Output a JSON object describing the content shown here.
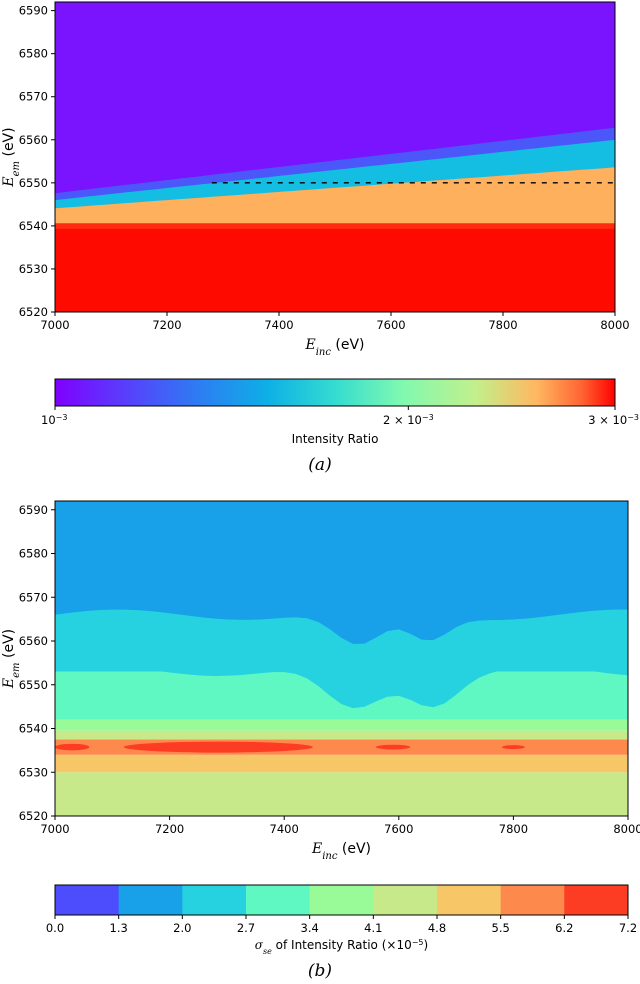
{
  "chart_data": [
    {
      "panel": "(a)",
      "type": "heatmap",
      "xlabel": {
        "sym": "E",
        "sub": "inc",
        "unit": " (eV)"
      },
      "ylabel": {
        "sym": "E",
        "sub": "em",
        "unit": " (eV)"
      },
      "xlim": [
        7000,
        8000
      ],
      "ylim": [
        6520,
        6592
      ],
      "x_ticks": [
        7000,
        7200,
        7400,
        7600,
        7800,
        8000
      ],
      "y_ticks": [
        6520,
        6530,
        6540,
        6550,
        6560,
        6570,
        6580,
        6590
      ],
      "colormap": "rainbow",
      "color_scale": "log",
      "colorbar": {
        "label": "Intensity Ratio",
        "range": [
          0.001,
          0.003
        ],
        "ticks": [
          {
            "value": 0.001,
            "base": "10",
            "exp": "−3",
            "prefix": ""
          },
          {
            "value": 0.002,
            "base": "10",
            "exp": "−3",
            "prefix": "2 × "
          },
          {
            "value": 0.003,
            "base": "10",
            "exp": "−3",
            "prefix": "3 × "
          }
        ]
      },
      "dashed_line": {
        "y": 6550,
        "x_start": 7280,
        "x_end": 8000
      },
      "regions_description_values": {
        "low_band_below_6539": 0.003,
        "transition_edge_at_7000": 6546,
        "transition_edge_at_8000": 6560,
        "background_above_edge": 0.001
      }
    },
    {
      "panel": "(b)",
      "type": "heatmap",
      "xlabel": {
        "sym": "E",
        "sub": "inc",
        "unit": " (eV)"
      },
      "ylabel": {
        "sym": "E",
        "sub": "em",
        "unit": " (eV)"
      },
      "xlim": [
        7000,
        8000
      ],
      "ylim": [
        6520,
        6592
      ],
      "x_ticks": [
        7000,
        7200,
        7400,
        7600,
        7800,
        8000
      ],
      "y_ticks": [
        6520,
        6530,
        6540,
        6550,
        6560,
        6570,
        6580,
        6590
      ],
      "colormap": "rainbow (discrete contour levels)",
      "levels": [
        0.0,
        1.3,
        2.0,
        2.7,
        3.4,
        4.1,
        4.8,
        5.5,
        6.2,
        7.2
      ],
      "level_labels": [
        "0.0",
        "1.3",
        "2.0",
        "2.7",
        "3.4",
        "4.1",
        "4.8",
        "5.5",
        "6.2",
        "7.2"
      ],
      "level_colors": [
        "#4d4dfd",
        "#18a0e9",
        "#26d2e0",
        "#5ff8c2",
        "#98fb98",
        "#c8e98a",
        "#f7c667",
        "#fd8a4c",
        "#fd3c24"
      ],
      "colorbar": {
        "label_sym": "σ",
        "label_sub": "se",
        "label_mid": " of Intensity Ratio (×10",
        "label_exp": "−5",
        "label_end": ")"
      },
      "bands": [
        {
          "level": 4.1,
          "from": 6520,
          "to": 6530
        },
        {
          "level": 4.8,
          "from": 6530,
          "to": 6534
        },
        {
          "level": 5.5,
          "from": 6534,
          "to": 6537.5
        },
        {
          "level": 4.1,
          "from": 6537.5,
          "to": 6539.5
        },
        {
          "level": 3.4,
          "from": 6539.5,
          "to": 6542
        },
        {
          "level": 2.7,
          "from": 6542,
          "to": 6553
        },
        {
          "level": 2.0,
          "from": 6553,
          "to": 6566
        },
        {
          "level": 1.3,
          "from": 6566,
          "to": 6592
        }
      ],
      "hotspots": [
        {
          "x": [
            7120,
            7450
          ],
          "y": [
            6534.5,
            6537
          ]
        },
        {
          "x": [
            7000,
            7060
          ],
          "y": [
            6535,
            6536.5
          ]
        },
        {
          "x": [
            7560,
            7620
          ],
          "y": [
            6535.2,
            6536.3
          ]
        },
        {
          "x": [
            7780,
            7820
          ],
          "y": [
            6535.3,
            6536.2
          ]
        }
      ]
    }
  ],
  "captions": {
    "a": "(a)",
    "b": "(b)"
  }
}
